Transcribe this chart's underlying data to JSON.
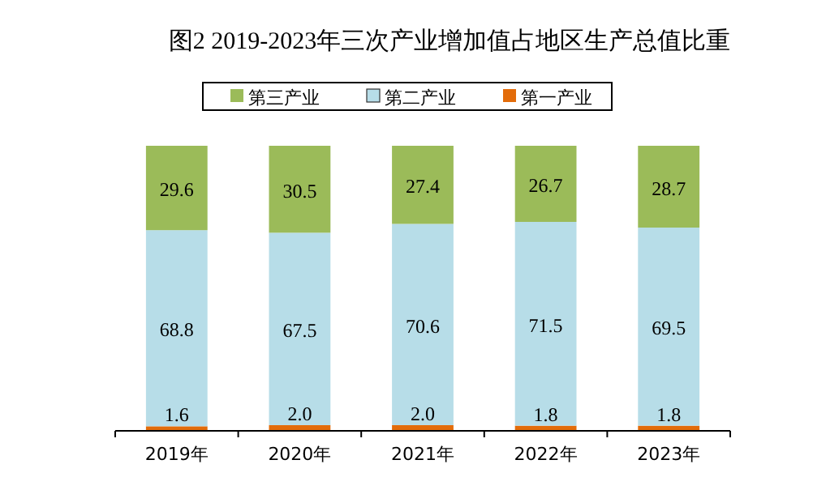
{
  "chart_data": {
    "type": "bar",
    "title": "图2  2019-2023年三次产业增加值占地区生产总值比重",
    "categories": [
      "2019年",
      "2020年",
      "2021年",
      "2022年",
      "2023年"
    ],
    "stacked": true,
    "legend": "top",
    "ylim": [
      0,
      100
    ],
    "series": [
      {
        "name": "第一产业",
        "color": "#e36c0a",
        "values": [
          1.6,
          2.0,
          2.0,
          1.8,
          1.8
        ],
        "value_labels": [
          "1.6",
          "2.0",
          "2.0",
          "1.8",
          "1.8"
        ]
      },
      {
        "name": "第二产业",
        "color": "#b7dde8",
        "values": [
          68.8,
          67.5,
          70.6,
          71.5,
          69.5
        ],
        "value_labels": [
          "68.8",
          "67.5",
          "70.6",
          "71.5",
          "69.5"
        ]
      },
      {
        "name": "第三产业",
        "color": "#9bbb59",
        "values": [
          29.6,
          30.5,
          27.4,
          26.7,
          28.7
        ],
        "value_labels": [
          "29.6",
          "30.5",
          "27.4",
          "26.7",
          "28.7"
        ]
      }
    ]
  }
}
